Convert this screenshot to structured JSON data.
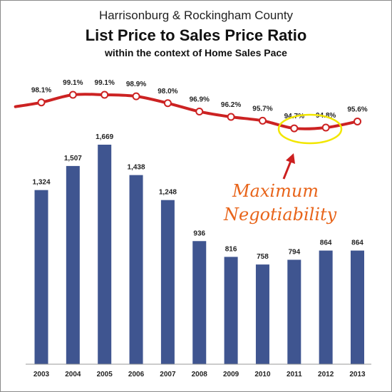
{
  "title_line1": "Harrisonburg & Rockingham County",
  "title_line2": "List Price to Sales Price Ratio",
  "title_line3": "within the context of Home Sales Pace",
  "annotation": [
    "Maximum",
    "Negotiability"
  ],
  "colors": {
    "bar": "#3f5590",
    "line": "#cc2222",
    "highlight": "#f2e600",
    "annotation": "#e8641a",
    "arrow": "#cc1f1f"
  },
  "chart_data": {
    "type": "bar",
    "categories": [
      "2003",
      "2004",
      "2005",
      "2006",
      "2007",
      "2008",
      "2009",
      "2010",
      "2011",
      "2012",
      "2013"
    ],
    "series": [
      {
        "type": "bar",
        "values": [
          1324,
          1507,
          1669,
          1438,
          1248,
          936,
          816,
          758,
          794,
          864,
          864
        ],
        "labels": [
          "1,324",
          "1,507",
          "1,669",
          "1,438",
          "1,248",
          "936",
          "816",
          "758",
          "794",
          "864",
          "864"
        ]
      },
      {
        "type": "line",
        "values": [
          98.1,
          99.1,
          99.1,
          98.9,
          98.0,
          96.9,
          96.2,
          95.7,
          94.7,
          94.8,
          95.6
        ],
        "labels": [
          "98.1%",
          "99.1%",
          "99.1%",
          "98.9%",
          "98.0%",
          "96.9%",
          "96.2%",
          "95.7%",
          "94.7%",
          "94.8%",
          "95.6%"
        ]
      }
    ],
    "highlight_categories": [
      "2011",
      "2012"
    ],
    "grid": false,
    "legend": "none"
  }
}
